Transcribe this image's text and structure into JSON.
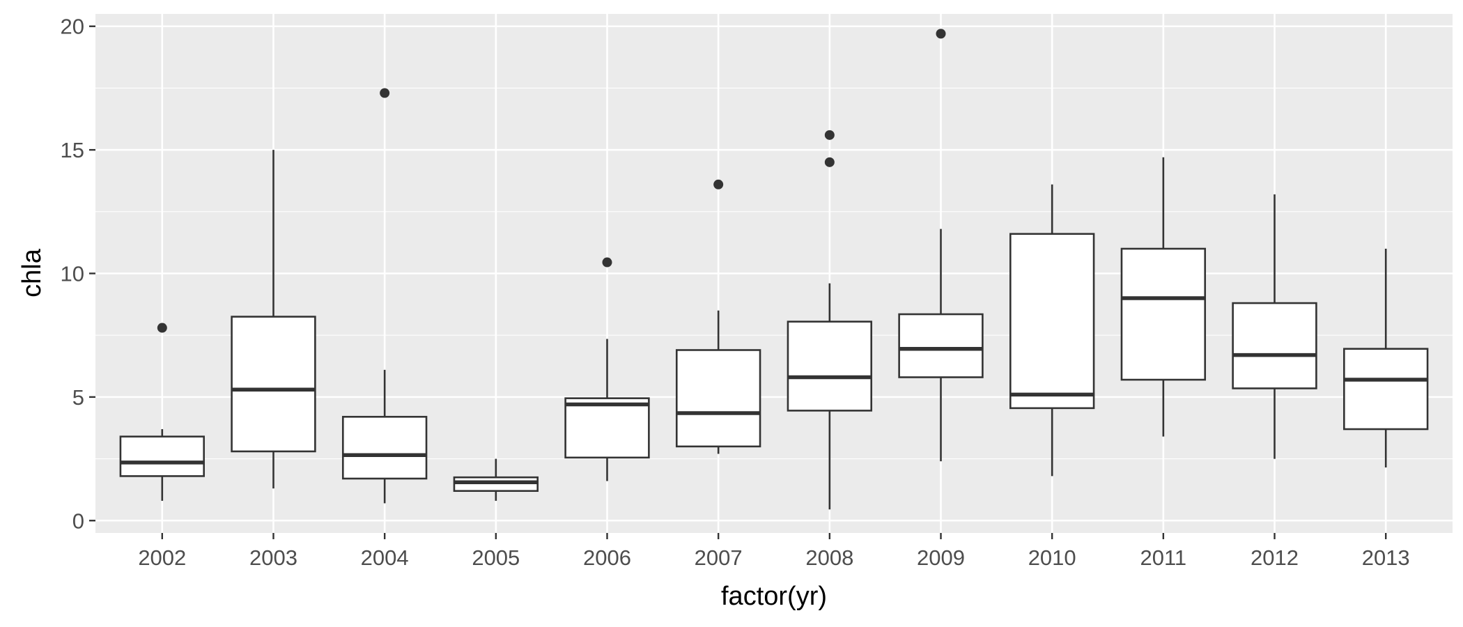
{
  "chart_data": {
    "type": "boxplot",
    "xlabel": "factor(yr)",
    "ylabel": "chla",
    "ylim": [
      -0.5,
      20.5
    ],
    "yticks": [
      0,
      5,
      10,
      15,
      20
    ],
    "grid": true,
    "categories": [
      "2002",
      "2003",
      "2004",
      "2005",
      "2006",
      "2007",
      "2008",
      "2009",
      "2010",
      "2011",
      "2012",
      "2013"
    ],
    "boxes": [
      {
        "category": "2002",
        "min": 0.8,
        "q1": 1.8,
        "median": 2.35,
        "q3": 3.4,
        "max": 3.7,
        "outliers": [
          7.8
        ]
      },
      {
        "category": "2003",
        "min": 1.3,
        "q1": 2.8,
        "median": 5.3,
        "q3": 8.25,
        "max": 15.0,
        "outliers": []
      },
      {
        "category": "2004",
        "min": 0.7,
        "q1": 1.7,
        "median": 2.65,
        "q3": 4.2,
        "max": 6.1,
        "outliers": [
          17.3
        ]
      },
      {
        "category": "2005",
        "min": 0.8,
        "q1": 1.2,
        "median": 1.55,
        "q3": 1.75,
        "max": 2.5,
        "outliers": []
      },
      {
        "category": "2006",
        "min": 1.6,
        "q1": 2.55,
        "median": 4.7,
        "q3": 4.95,
        "max": 7.35,
        "outliers": [
          10.45
        ]
      },
      {
        "category": "2007",
        "min": 2.7,
        "q1": 3.0,
        "median": 4.35,
        "q3": 6.9,
        "max": 8.5,
        "outliers": [
          13.6
        ]
      },
      {
        "category": "2008",
        "min": 0.45,
        "q1": 4.45,
        "median": 5.8,
        "q3": 8.05,
        "max": 9.6,
        "outliers": [
          14.5,
          15.6
        ]
      },
      {
        "category": "2009",
        "min": 2.4,
        "q1": 5.8,
        "median": 6.95,
        "q3": 8.35,
        "max": 11.8,
        "outliers": [
          19.7
        ]
      },
      {
        "category": "2010",
        "min": 1.8,
        "q1": 4.55,
        "median": 5.1,
        "q3": 11.6,
        "max": 13.6,
        "outliers": []
      },
      {
        "category": "2011",
        "min": 3.4,
        "q1": 5.7,
        "median": 9.0,
        "q3": 11.0,
        "max": 14.7,
        "outliers": []
      },
      {
        "category": "2012",
        "min": 2.5,
        "q1": 5.35,
        "median": 6.7,
        "q3": 8.8,
        "max": 13.2,
        "outliers": []
      },
      {
        "category": "2013",
        "min": 2.15,
        "q1": 3.7,
        "median": 5.7,
        "q3": 6.95,
        "max": 11.0,
        "outliers": []
      }
    ]
  },
  "colors": {
    "panel_background": "#ebebeb",
    "grid_major": "#ffffff",
    "box_fill": "#ffffff",
    "box_stroke": "#333333",
    "outlier": "#333333",
    "tick_text": "#4d4d4d",
    "tick_mark": "#333333",
    "title_text": "#000000"
  }
}
